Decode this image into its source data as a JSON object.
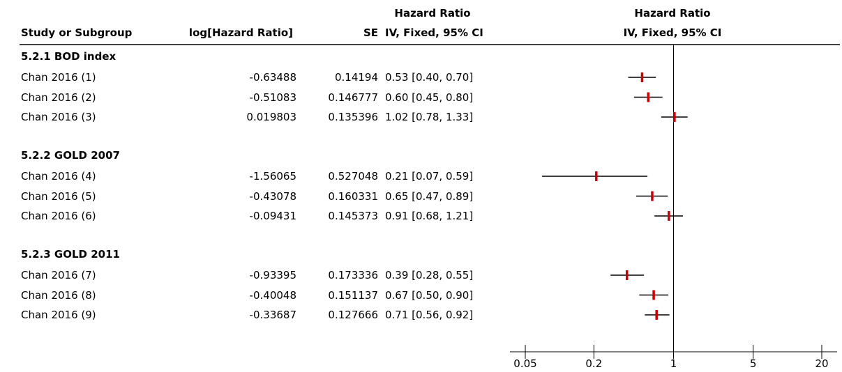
{
  "headers": {
    "col_study": "Study or Subgroup",
    "col_loghr": "log[Hazard Ratio]",
    "col_se": "SE",
    "col_hr_title": "Hazard Ratio",
    "col_hr_method": "IV, Fixed, 95% CI",
    "plot_title": "Hazard Ratio",
    "plot_method": "IV, Fixed, 95% CI"
  },
  "groups": [
    {
      "label": "5.2.1 BOD index",
      "rows": [
        {
          "study": "Chan 2016 (1)",
          "loghr": "-0.63488",
          "se": "0.14194",
          "ci": "0.53 [0.40, 0.70]"
        },
        {
          "study": "Chan 2016 (2)",
          "loghr": "-0.51083",
          "se": "0.146777",
          "ci": "0.60 [0.45, 0.80]"
        },
        {
          "study": "Chan 2016 (3)",
          "loghr": "0.019803",
          "se": "0.135396",
          "ci": "1.02 [0.78, 1.33]"
        }
      ]
    },
    {
      "label": "5.2.2 GOLD 2007",
      "rows": [
        {
          "study": "Chan 2016 (4)",
          "loghr": "-1.56065",
          "se": "0.527048",
          "ci": "0.21 [0.07, 0.59]"
        },
        {
          "study": "Chan 2016 (5)",
          "loghr": "-0.43078",
          "se": "0.160331",
          "ci": "0.65 [0.47, 0.89]"
        },
        {
          "study": "Chan 2016 (6)",
          "loghr": "-0.09431",
          "se": "0.145373",
          "ci": "0.91 [0.68, 1.21]"
        }
      ]
    },
    {
      "label": "5.2.3 GOLD 2011",
      "rows": [
        {
          "study": "Chan 2016 (7)",
          "loghr": "-0.93395",
          "se": "0.173336",
          "ci": "0.39 [0.28, 0.55]"
        },
        {
          "study": "Chan 2016 (8)",
          "loghr": "-0.40048",
          "se": "0.151137",
          "ci": "0.67 [0.50, 0.90]"
        },
        {
          "study": "Chan 2016 (9)",
          "loghr": "-0.33687",
          "se": "0.127666",
          "ci": "0.71 [0.56, 0.92]"
        }
      ]
    }
  ],
  "chart_data": {
    "type": "forest",
    "xscale": "log",
    "xlim": [
      0.05,
      20
    ],
    "ticks": [
      0.05,
      0.2,
      1,
      5,
      20
    ],
    "tick_labels": [
      "0.05",
      "0.2",
      "1",
      "5",
      "20"
    ],
    "reference_line": 1,
    "marker_color": "#cc0000",
    "points": [
      {
        "label": "Chan 2016 (1)",
        "hr": 0.53,
        "lo": 0.4,
        "hi": 0.7
      },
      {
        "label": "Chan 2016 (2)",
        "hr": 0.6,
        "lo": 0.45,
        "hi": 0.8
      },
      {
        "label": "Chan 2016 (3)",
        "hr": 1.02,
        "lo": 0.78,
        "hi": 1.33
      },
      {
        "label": "Chan 2016 (4)",
        "hr": 0.21,
        "lo": 0.07,
        "hi": 0.59
      },
      {
        "label": "Chan 2016 (5)",
        "hr": 0.65,
        "lo": 0.47,
        "hi": 0.89
      },
      {
        "label": "Chan 2016 (6)",
        "hr": 0.91,
        "lo": 0.68,
        "hi": 1.21
      },
      {
        "label": "Chan 2016 (7)",
        "hr": 0.39,
        "lo": 0.28,
        "hi": 0.55
      },
      {
        "label": "Chan 2016 (8)",
        "hr": 0.67,
        "lo": 0.5,
        "hi": 0.9
      },
      {
        "label": "Chan 2016 (9)",
        "hr": 0.71,
        "lo": 0.56,
        "hi": 0.92
      }
    ]
  }
}
